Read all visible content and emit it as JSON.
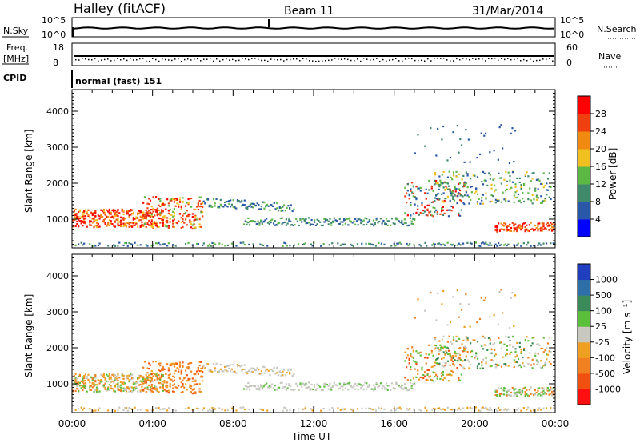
{
  "header": {
    "station": "Halley (fitACF)",
    "beam": "Beam 11",
    "date": "31/Mar/2014"
  },
  "sky_panel": {
    "left_label": "N.Sky",
    "left_ticks": [
      "10^5",
      "10^0"
    ],
    "right_label": "N.Search",
    "right_ticks": [
      "10^5",
      "10^0"
    ]
  },
  "freq_panel": {
    "left_label_1": "Freq.",
    "left_label_2": "[MHz]",
    "left_ticks": [
      "18",
      "8"
    ],
    "right_label": "Nave",
    "right_ticks": [
      "60",
      "0"
    ]
  },
  "cpid": {
    "label": "CPID",
    "value": "normal (fast) 151"
  },
  "colors": {
    "power_scale": [
      "#0000ff",
      "#2a58a8",
      "#3f8a6a",
      "#5cb845",
      "#f0c020",
      "#f08a10",
      "#f04010",
      "#ff0000"
    ],
    "velocity_scale": [
      "#1f3fbf",
      "#2f6fa8",
      "#3a8a5a",
      "#5cbf3c",
      "#c8c8c0",
      "#f0a020",
      "#f08020",
      "#f05010",
      "#ff1010"
    ]
  },
  "chart_data": [
    {
      "type": "heatmap",
      "title": "",
      "xlabel": "",
      "ylabel": "Slant Range [km]",
      "y_ticks": [
        "1000",
        "2000",
        "3000",
        "4000"
      ],
      "ylim": [
        200,
        4600
      ],
      "xlim": [
        "00:00",
        "24:00"
      ],
      "colorbar": {
        "label": "Power [dB]",
        "ticks": [
          "4",
          "8",
          "12",
          "16",
          "20",
          "24",
          "28"
        ],
        "range": [
          0,
          32
        ]
      }
    },
    {
      "type": "heatmap",
      "title": "",
      "xlabel": "Time UT",
      "ylabel": "Slant Range [km]",
      "x_ticks": [
        "00:00",
        "04:00",
        "08:00",
        "12:00",
        "16:00",
        "20:00",
        "00:00"
      ],
      "y_ticks": [
        "1000",
        "2000",
        "3000",
        "4000"
      ],
      "ylim": [
        200,
        4600
      ],
      "xlim": [
        "00:00",
        "24:00"
      ],
      "colorbar": {
        "label": "Velocity [m s⁻¹]",
        "ticks": [
          "1000",
          "500",
          "100",
          "25",
          "-25",
          "-100",
          "-500",
          "-1000"
        ]
      }
    }
  ]
}
